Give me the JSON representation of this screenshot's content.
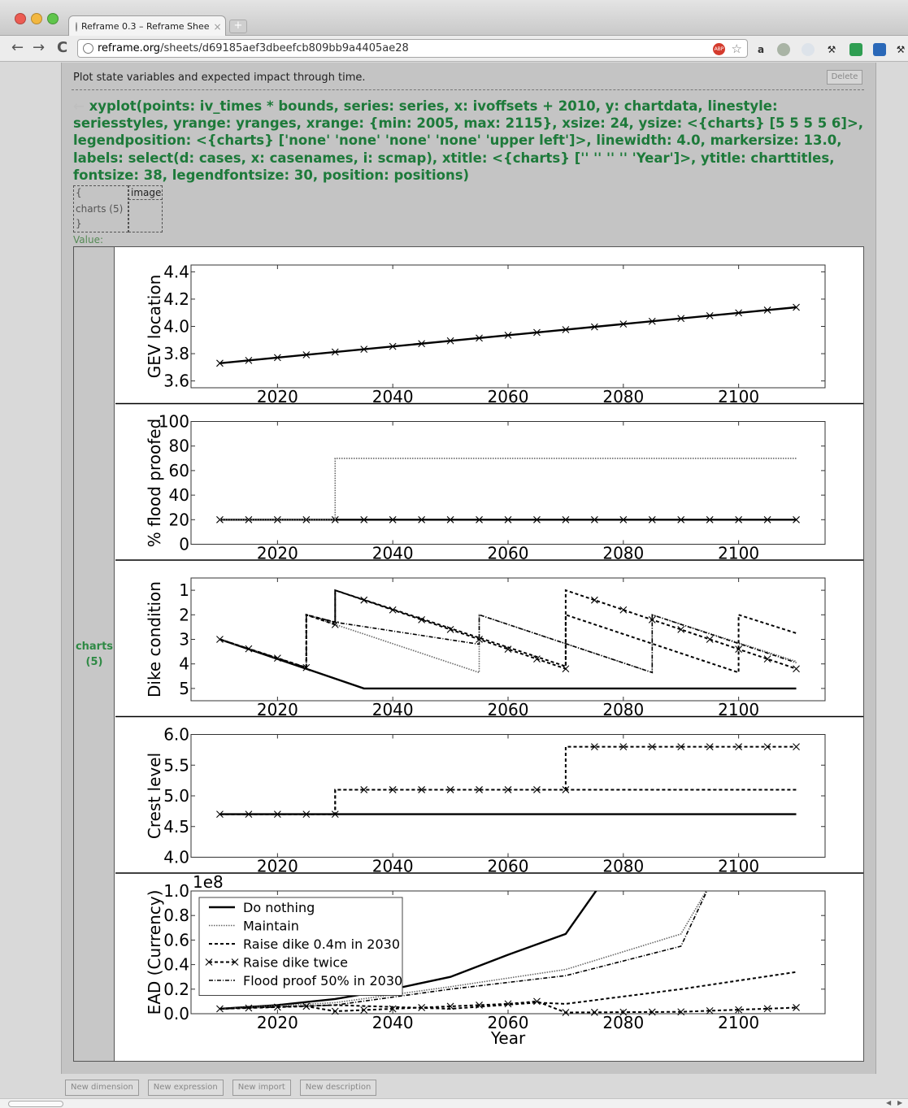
{
  "browser": {
    "tab_title": "Reframe 0.3 – Reframe Shee",
    "tab_close": "×",
    "new_tab": "+",
    "url_domain": "reframe.org",
    "url_path": "/sheets/d69185aef3dbeefcb809bb9a4405ae28",
    "abp_label": "ABP"
  },
  "sheet": {
    "description": "Plot state variables and expected impact through time.",
    "delete_label": "Delete",
    "arrow": "←",
    "expression": "xyplot(points: iv_times * bounds, series: series, x: ivoffsets + 2010, y: chartdata, linestyle: seriesstyles, yrange: yranges, xrange: {min: 2005, max: 2115}, xsize: 24, ysize: <{charts} [5 5 5 5 6]>, legendposition: <{charts} ['none' 'none' 'none' 'none' 'upper left']>, linewidth: 4.0, markersize: 13.0, labels: select(d: cases, x: casenames, i: scmap), xtitle: <{charts} ['' '' '' '' 'Year']>, ytitle: charttitles, fontsize: 38, legendfontsize: 30, position: positions)",
    "map_open": "{",
    "map_key": "charts (5)",
    "map_close": "}",
    "map_value": "image",
    "value_label": "Value:",
    "value_key_1": "charts",
    "value_key_2": "(5)"
  },
  "bottom_buttons": [
    "New dimension",
    "New expression",
    "New import",
    "New description"
  ],
  "chart_data": [
    {
      "type": "line",
      "ylabel": "GEV location",
      "xlim": [
        2005,
        2115
      ],
      "ylim": [
        3.55,
        4.45
      ],
      "yticks": [
        3.6,
        3.8,
        4.0,
        4.2,
        4.4
      ],
      "ytick_labels": [
        "3.6",
        "3.8",
        "4.0",
        "4.2",
        "4.4"
      ],
      "xticks": [
        2020,
        2040,
        2060,
        2080,
        2100
      ],
      "xtick_labels": [
        "2020",
        "2040",
        "2060",
        "2080",
        "2100"
      ],
      "series": [
        {
          "style": "solid-x",
          "points": [
            [
              2010,
              3.73
            ],
            [
              2110,
              4.14
            ]
          ]
        }
      ]
    },
    {
      "type": "line",
      "ylabel": "% flood proofed",
      "xlim": [
        2005,
        2115
      ],
      "ylim": [
        0,
        100
      ],
      "yticks": [
        0,
        20,
        40,
        60,
        80,
        100
      ],
      "ytick_labels": [
        "0",
        "20",
        "40",
        "60",
        "80",
        "100"
      ],
      "xticks": [
        2020,
        2040,
        2060,
        2080,
        2100
      ],
      "xtick_labels": [
        "2020",
        "2040",
        "2060",
        "2080",
        "2100"
      ],
      "series": [
        {
          "style": "solid-x",
          "points": [
            [
              2010,
              20
            ],
            [
              2110,
              20
            ]
          ]
        },
        {
          "style": "dotted",
          "points": [
            [
              2010,
              20
            ],
            [
              2030,
              20
            ],
            [
              2030,
              70
            ],
            [
              2110,
              70
            ]
          ]
        }
      ]
    },
    {
      "type": "line",
      "ylabel": "Dike condition",
      "xlim": [
        2005,
        2115
      ],
      "ylim": [
        5.5,
        0.5
      ],
      "yticks": [
        1,
        2,
        3,
        4,
        5
      ],
      "ytick_labels": [
        "1",
        "2",
        "3",
        "4",
        "5"
      ],
      "xticks": [
        2020,
        2040,
        2060,
        2080,
        2100
      ],
      "xtick_labels": [
        "2020",
        "2040",
        "2060",
        "2080",
        "2100"
      ],
      "series": [
        {
          "style": "solid",
          "points": [
            [
              2010,
              3
            ],
            [
              2035,
              5
            ],
            [
              2110,
              5
            ]
          ]
        },
        {
          "style": "dotted",
          "points": [
            [
              2010,
              3
            ],
            [
              2025,
              4.15
            ],
            [
              2025,
              2
            ],
            [
              2055,
              4.35
            ],
            [
              2055,
              2
            ],
            [
              2085,
              4.35
            ],
            [
              2085,
              2
            ],
            [
              2110,
              3.9
            ]
          ]
        },
        {
          "style": "dashed",
          "points": [
            [
              2010,
              3
            ],
            [
              2025,
              4.15
            ],
            [
              2025,
              2
            ],
            [
              2030,
              2.3
            ],
            [
              2030,
              1
            ],
            [
              2070,
              4.1
            ],
            [
              2070,
              2
            ],
            [
              2100,
              4.35
            ],
            [
              2100,
              2
            ],
            [
              2110,
              2.75
            ]
          ]
        },
        {
          "style": "dashed-x",
          "points": [
            [
              2010,
              3
            ],
            [
              2025,
              4.15
            ],
            [
              2025,
              2
            ],
            [
              2030,
              2.4
            ],
            [
              2030,
              1
            ],
            [
              2070,
              4.2
            ],
            [
              2070,
              1
            ],
            [
              2110,
              4.2
            ]
          ]
        },
        {
          "style": "dashdot",
          "points": [
            [
              2010,
              3
            ],
            [
              2025,
              4.15
            ],
            [
              2025,
              2
            ],
            [
              2030,
              2.3
            ],
            [
              2055,
              3.2
            ],
            [
              2055,
              2
            ],
            [
              2085,
              4.35
            ],
            [
              2085,
              2
            ],
            [
              2110,
              3.95
            ]
          ]
        }
      ]
    },
    {
      "type": "line",
      "ylabel": "Crest level",
      "xlim": [
        2005,
        2115
      ],
      "ylim": [
        4.0,
        6.0
      ],
      "yticks": [
        4.0,
        4.5,
        5.0,
        5.5,
        6.0
      ],
      "ytick_labels": [
        "4.0",
        "4.5",
        "5.0",
        "5.5",
        "6.0"
      ],
      "xticks": [
        2020,
        2040,
        2060,
        2080,
        2100
      ],
      "xtick_labels": [
        "2020",
        "2040",
        "2060",
        "2080",
        "2100"
      ],
      "series": [
        {
          "style": "solid",
          "points": [
            [
              2010,
              4.7
            ],
            [
              2110,
              4.7
            ]
          ]
        },
        {
          "style": "dashed",
          "points": [
            [
              2010,
              4.7
            ],
            [
              2030,
              4.7
            ],
            [
              2030,
              5.1
            ],
            [
              2110,
              5.1
            ]
          ]
        },
        {
          "style": "dashed-x",
          "points": [
            [
              2010,
              4.7
            ],
            [
              2030,
              4.7
            ],
            [
              2030,
              5.1
            ],
            [
              2070,
              5.1
            ],
            [
              2070,
              5.8
            ],
            [
              2110,
              5.8
            ]
          ]
        }
      ]
    },
    {
      "type": "line",
      "ylabel": "EAD (Currency)",
      "xlabel": "Year",
      "exponent_label": "1e8",
      "xlim": [
        2005,
        2115
      ],
      "ylim": [
        0,
        1.0
      ],
      "yticks": [
        0.0,
        0.2,
        0.4,
        0.6,
        0.8,
        1.0
      ],
      "ytick_labels": [
        "0.0",
        "0.2",
        "0.4",
        "0.6",
        "0.8",
        "1.0"
      ],
      "xticks": [
        2020,
        2040,
        2060,
        2080,
        2100
      ],
      "xtick_labels": [
        "2020",
        "2040",
        "2060",
        "2080",
        "2100"
      ],
      "legend_position": "upper left",
      "series": [
        {
          "name": "Do nothing",
          "style": "solid",
          "points": [
            [
              2010,
              0.04
            ],
            [
              2020,
              0.07
            ],
            [
              2030,
              0.12
            ],
            [
              2040,
              0.2
            ],
            [
              2050,
              0.3
            ],
            [
              2060,
              0.48
            ],
            [
              2070,
              0.65
            ],
            [
              2076,
              1.05
            ]
          ]
        },
        {
          "name": "Maintain",
          "style": "dotted",
          "points": [
            [
              2010,
              0.04
            ],
            [
              2030,
              0.09
            ],
            [
              2050,
              0.22
            ],
            [
              2070,
              0.36
            ],
            [
              2090,
              0.65
            ],
            [
              2095,
              1.05
            ]
          ]
        },
        {
          "name": "Raise dike 0.4m in 2030",
          "style": "dashed",
          "points": [
            [
              2010,
              0.04
            ],
            [
              2030,
              0.07
            ],
            [
              2050,
              0.04
            ],
            [
              2065,
              0.09
            ],
            [
              2070,
              0.08
            ],
            [
              2090,
              0.2
            ],
            [
              2110,
              0.34
            ]
          ]
        },
        {
          "name": "Raise dike twice",
          "style": "dashed-x",
          "points": [
            [
              2010,
              0.04
            ],
            [
              2025,
              0.06
            ],
            [
              2030,
              0.02
            ],
            [
              2060,
              0.08
            ],
            [
              2065,
              0.1
            ],
            [
              2070,
              0.01
            ],
            [
              2090,
              0.015
            ],
            [
              2110,
              0.05
            ]
          ]
        },
        {
          "name": "Flood proof 50% in 2030",
          "style": "dashdot",
          "points": [
            [
              2010,
              0.04
            ],
            [
              2030,
              0.07
            ],
            [
              2050,
              0.2
            ],
            [
              2070,
              0.31
            ],
            [
              2090,
              0.55
            ],
            [
              2095,
              1.05
            ]
          ]
        }
      ]
    }
  ]
}
